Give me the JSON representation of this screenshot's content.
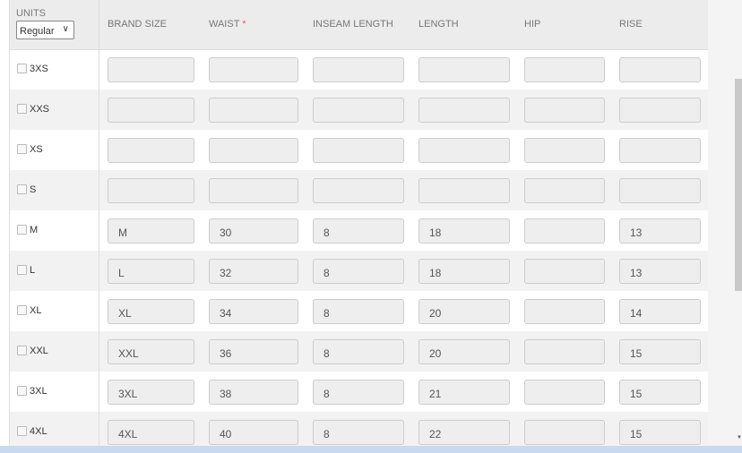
{
  "header": {
    "units_label": "UNITS",
    "units_value": "Regular",
    "columns": [
      "BRAND SIZE",
      "WAIST",
      "INSEAM LENGTH",
      "LENGTH",
      "HIP",
      "RISE"
    ],
    "required_mark": "*"
  },
  "rows": [
    {
      "size": "3XS",
      "values": [
        "",
        "",
        "",
        "",
        "",
        ""
      ]
    },
    {
      "size": "XXS",
      "values": [
        "",
        "",
        "",
        "",
        "",
        ""
      ]
    },
    {
      "size": "XS",
      "values": [
        "",
        "",
        "",
        "",
        "",
        ""
      ]
    },
    {
      "size": "S",
      "values": [
        "",
        "",
        "",
        "",
        "",
        ""
      ]
    },
    {
      "size": "M",
      "values": [
        "M",
        "30",
        "8",
        "18",
        "",
        "13"
      ]
    },
    {
      "size": "L",
      "values": [
        "L",
        "32",
        "8",
        "18",
        "",
        "13"
      ]
    },
    {
      "size": "XL",
      "values": [
        "XL",
        "34",
        "8",
        "20",
        "",
        "14"
      ]
    },
    {
      "size": "XXL",
      "values": [
        "XXL",
        "36",
        "8",
        "20",
        "",
        "15"
      ]
    },
    {
      "size": "3XL",
      "values": [
        "3XL",
        "38",
        "8",
        "21",
        "",
        "15"
      ]
    },
    {
      "size": "4XL",
      "values": [
        "4XL",
        "40",
        "8",
        "22",
        "",
        "15"
      ]
    }
  ]
}
